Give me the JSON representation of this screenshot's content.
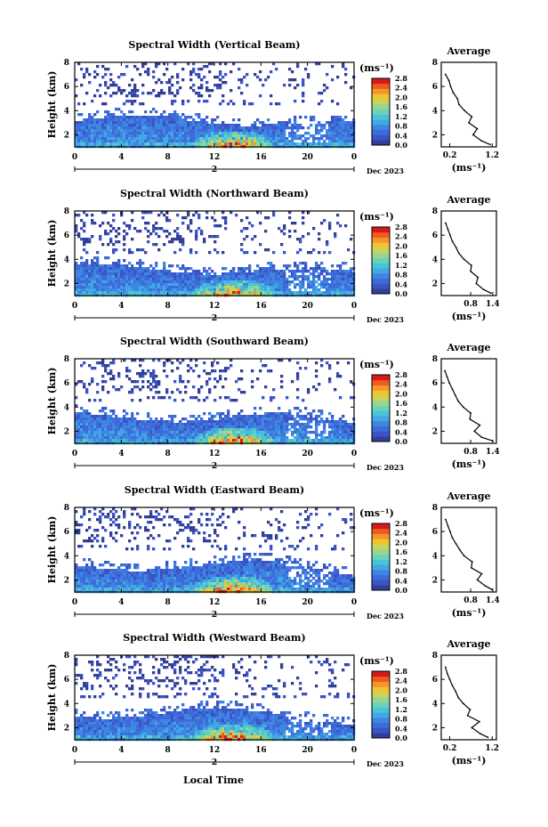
{
  "figure": {
    "colorbar_unit": "(ms⁻¹)",
    "xlabel": "Local Time",
    "ylabel": "Height (km)",
    "date_text": "Dec 2023",
    "day_label": "2",
    "colors": [
      "#333e96",
      "#3a53c5",
      "#3d6bd9",
      "#3f86e2",
      "#40a8e4",
      "#4bc3d6",
      "#69d3b9",
      "#9ad58e",
      "#c8d45c",
      "#f0c431",
      "#f6952a",
      "#f05b1f",
      "#d7191c"
    ]
  },
  "chart_data": [
    {
      "type": "heatmap",
      "title": "Spectral Width (Vertical Beam)",
      "xlabel": "",
      "ylabel": "Height (km)",
      "x_ticks": [
        "0",
        "4",
        "8",
        "12",
        "16",
        "20",
        "0"
      ],
      "xlim": [
        0,
        24
      ],
      "y_ticks": [
        "2",
        "4",
        "6",
        "8"
      ],
      "ylim": [
        1,
        8
      ],
      "colorbar_ticks": [
        "0.0",
        "0.4",
        "0.8",
        "1.2",
        "1.6",
        "2.0",
        "2.4",
        "2.8"
      ],
      "colorbar_range": [
        0,
        2.8
      ],
      "profile": {
        "title": "Average",
        "xlabel": "(ms⁻¹)",
        "x_ticks": [
          "0.2",
          "1.2"
        ],
        "xlim": [
          0.0,
          1.3
        ],
        "y_ticks": [
          "2",
          "4",
          "6",
          "8"
        ],
        "ylim": [
          1,
          8
        ],
        "height": [
          1.2,
          1.5,
          2.0,
          2.5,
          3.0,
          3.5,
          4.0,
          4.5,
          5.0,
          5.5,
          6.0,
          6.5,
          7.0
        ],
        "width": [
          1.15,
          0.95,
          0.75,
          0.85,
          0.65,
          0.72,
          0.55,
          0.42,
          0.38,
          0.28,
          0.22,
          0.18,
          0.1
        ]
      }
    },
    {
      "type": "heatmap",
      "title": "Spectral Width (Northward Beam)",
      "xlabel": "",
      "ylabel": "Height (km)",
      "x_ticks": [
        "0",
        "4",
        "8",
        "12",
        "16",
        "20",
        "0"
      ],
      "xlim": [
        0,
        24
      ],
      "y_ticks": [
        "2",
        "4",
        "6",
        "8"
      ],
      "ylim": [
        1,
        8
      ],
      "colorbar_ticks": [
        "0.0",
        "0.4",
        "0.8",
        "1.2",
        "1.6",
        "2.0",
        "2.4",
        "2.8"
      ],
      "colorbar_range": [
        0,
        2.8
      ],
      "profile": {
        "title": "Average",
        "xlabel": "(ms⁻¹)",
        "x_ticks": [
          "0.8",
          "1.4"
        ],
        "xlim": [
          0.0,
          1.5
        ],
        "y_ticks": [
          "2",
          "4",
          "6",
          "8"
        ],
        "ylim": [
          1,
          8
        ],
        "height": [
          1.2,
          1.5,
          2.0,
          2.5,
          3.0,
          3.5,
          4.0,
          4.5,
          5.0,
          5.5,
          6.0,
          6.5,
          7.0
        ],
        "width": [
          1.35,
          1.15,
          0.95,
          1.0,
          0.8,
          0.82,
          0.62,
          0.48,
          0.4,
          0.3,
          0.24,
          0.18,
          0.12
        ]
      }
    },
    {
      "type": "heatmap",
      "title": "Spectral Width (Southward Beam)",
      "xlabel": "",
      "ylabel": "Height (km)",
      "x_ticks": [
        "0",
        "4",
        "8",
        "12",
        "16",
        "20",
        "0"
      ],
      "xlim": [
        0,
        24
      ],
      "y_ticks": [
        "2",
        "4",
        "6",
        "8"
      ],
      "ylim": [
        1,
        8
      ],
      "colorbar_ticks": [
        "0.0",
        "0.4",
        "0.8",
        "1.2",
        "1.6",
        "2.0",
        "2.4",
        "2.8"
      ],
      "colorbar_range": [
        0,
        2.8
      ],
      "profile": {
        "title": "Average",
        "xlabel": "(ms⁻¹)",
        "x_ticks": [
          "0.8",
          "1.4"
        ],
        "xlim": [
          0.0,
          1.5
        ],
        "y_ticks": [
          "2",
          "4",
          "6",
          "8"
        ],
        "ylim": [
          1,
          8
        ],
        "height": [
          1.2,
          1.5,
          2.0,
          2.5,
          3.0,
          3.5,
          4.0,
          4.5,
          5.0,
          5.5,
          6.0,
          6.5,
          7.0
        ],
        "width": [
          1.4,
          1.1,
          0.9,
          1.05,
          0.78,
          0.8,
          0.6,
          0.46,
          0.38,
          0.3,
          0.22,
          0.16,
          0.1
        ]
      }
    },
    {
      "type": "heatmap",
      "title": "Spectral Width (Eastward Beam)",
      "xlabel": "",
      "ylabel": "Height (km)",
      "x_ticks": [
        "0",
        "4",
        "8",
        "12",
        "16",
        "20",
        "0"
      ],
      "xlim": [
        0,
        24
      ],
      "y_ticks": [
        "2",
        "4",
        "6",
        "8"
      ],
      "ylim": [
        1,
        8
      ],
      "colorbar_ticks": [
        "0.0",
        "0.4",
        "0.8",
        "1.2",
        "1.6",
        "2.0",
        "2.4",
        "2.8"
      ],
      "colorbar_range": [
        0,
        2.8
      ],
      "profile": {
        "title": "Average",
        "xlabel": "(ms⁻¹)",
        "x_ticks": [
          "0.8",
          "1.4"
        ],
        "xlim": [
          0.0,
          1.5
        ],
        "y_ticks": [
          "2",
          "4",
          "6",
          "8"
        ],
        "ylim": [
          1,
          8
        ],
        "height": [
          1.2,
          1.5,
          2.0,
          2.5,
          3.0,
          3.5,
          4.0,
          4.5,
          5.0,
          5.5,
          6.0,
          6.5,
          7.0
        ],
        "width": [
          1.38,
          1.2,
          0.98,
          1.1,
          0.82,
          0.84,
          0.62,
          0.5,
          0.4,
          0.3,
          0.24,
          0.18,
          0.12
        ]
      }
    },
    {
      "type": "heatmap",
      "title": "Spectral Width (Westward Beam)",
      "xlabel": "Local Time",
      "ylabel": "Height (km)",
      "x_ticks": [
        "0",
        "4",
        "8",
        "12",
        "16",
        "20",
        "0"
      ],
      "xlim": [
        0,
        24
      ],
      "y_ticks": [
        "2",
        "4",
        "6",
        "8"
      ],
      "ylim": [
        1,
        8
      ],
      "colorbar_ticks": [
        "0.0",
        "0.4",
        "0.8",
        "1.2",
        "1.6",
        "2.0",
        "2.4",
        "2.8"
      ],
      "colorbar_range": [
        0,
        2.8
      ],
      "profile": {
        "title": "Average",
        "xlabel": "(ms⁻¹)",
        "x_ticks": [
          "0.2",
          "1.2"
        ],
        "xlim": [
          0.0,
          1.3
        ],
        "y_ticks": [
          "2",
          "4",
          "6",
          "8"
        ],
        "ylim": [
          1,
          8
        ],
        "height": [
          1.2,
          1.5,
          2.0,
          2.5,
          3.0,
          3.5,
          4.0,
          4.5,
          5.0,
          5.5,
          6.0,
          6.5,
          7.0
        ],
        "width": [
          1.1,
          0.92,
          0.72,
          0.9,
          0.62,
          0.68,
          0.52,
          0.4,
          0.34,
          0.26,
          0.2,
          0.14,
          0.1
        ]
      }
    }
  ]
}
